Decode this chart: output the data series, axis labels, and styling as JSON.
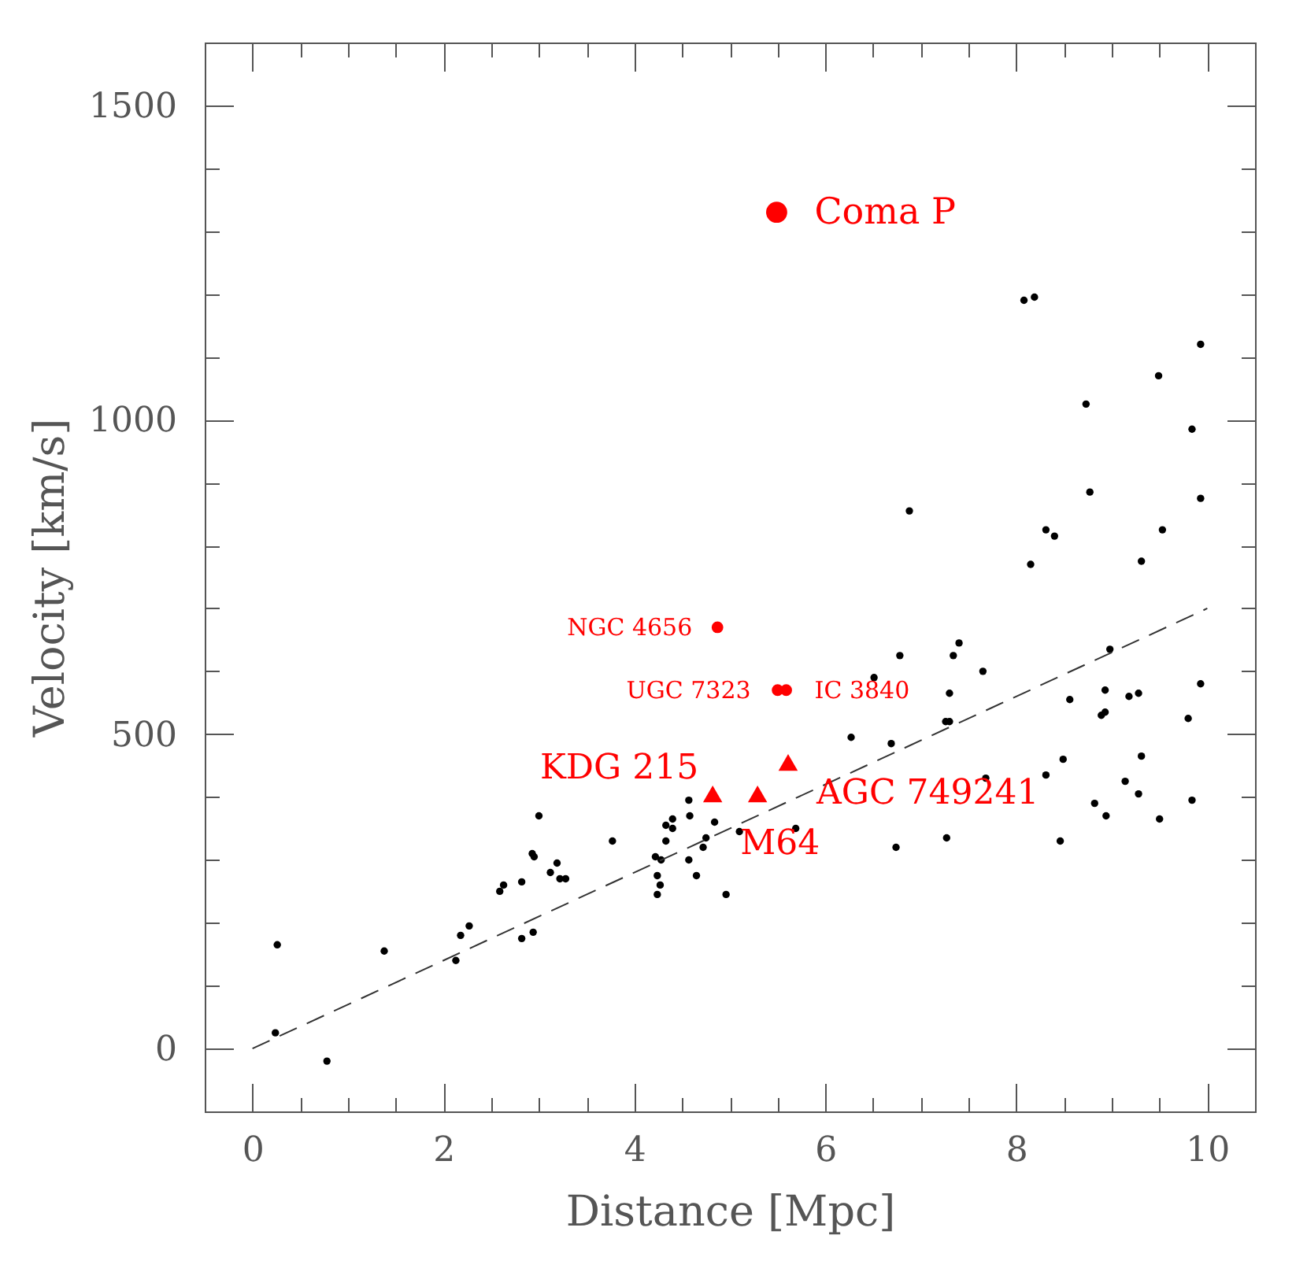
{
  "chart_data": {
    "type": "scatter",
    "xlabel": "Distance [Mpc]",
    "ylabel": "Velocity [km/s]",
    "xlim": [
      -0.5,
      10.5
    ],
    "ylim": [
      -100,
      1600
    ],
    "xticks": [
      0,
      {
        "value": 0.5,
        "label": null
      },
      {
        "value": 1,
        "label": null
      },
      {
        "value": 1.5,
        "label": null
      },
      2,
      {
        "value": 2.5,
        "label": null
      },
      {
        "value": 3,
        "label": null
      },
      {
        "value": 3.5,
        "label": null
      },
      4,
      {
        "value": 4.5,
        "label": null
      },
      {
        "value": 5,
        "label": null
      },
      {
        "value": 5.5,
        "label": null
      },
      6,
      {
        "value": 6.5,
        "label": null
      },
      {
        "value": 7,
        "label": null
      },
      {
        "value": 7.5,
        "label": null
      },
      8,
      {
        "value": 8.5,
        "label": null
      },
      {
        "value": 9,
        "label": null
      },
      {
        "value": 9.5,
        "label": null
      },
      10
    ],
    "yticks": [
      0,
      {
        "value": 100,
        "label": null
      },
      {
        "value": 200,
        "label": null
      },
      {
        "value": 300,
        "label": null
      },
      {
        "value": 400,
        "label": null
      },
      500,
      {
        "value": 600,
        "label": null
      },
      {
        "value": 700,
        "label": null
      },
      {
        "value": 800,
        "label": null
      },
      {
        "value": 900,
        "label": null
      },
      1000,
      {
        "value": 1100,
        "label": null
      },
      {
        "value": 1200,
        "label": null
      },
      {
        "value": 1300,
        "label": null
      },
      {
        "value": 1400,
        "label": null
      },
      1500
    ],
    "series": [
      {
        "color": "#000000",
        "marker": "circle",
        "x": [
          0.24,
          0.26,
          0.78,
          1.38,
          2.13,
          2.18,
          2.27,
          2.59,
          2.63,
          2.82,
          2.82,
          2.93,
          2.94,
          2.95,
          3.0,
          3.12,
          3.19,
          3.22,
          3.28,
          3.77,
          4.22,
          4.24,
          4.24,
          4.27,
          4.28,
          4.33,
          4.33,
          4.4,
          4.4,
          4.57,
          4.57,
          4.58,
          4.65,
          4.72,
          4.75,
          4.84,
          4.96,
          5.1,
          5.69,
          6.27,
          6.51,
          6.69,
          6.74,
          6.78,
          6.88,
          7.26,
          7.27,
          7.3,
          7.3,
          7.34,
          7.4,
          7.65,
          7.68,
          8.08,
          8.15,
          8.19,
          8.31,
          8.31,
          8.4,
          8.46,
          8.49,
          8.56,
          8.73,
          8.77,
          8.82,
          8.89,
          8.93,
          8.93,
          8.94,
          8.98,
          9.14,
          9.18,
          9.28,
          9.28,
          9.31,
          9.31,
          9.49,
          9.5,
          9.53,
          9.8,
          9.84,
          9.84,
          9.93,
          9.93,
          9.93
        ],
        "values": [
          25,
          165,
          -20,
          155,
          140,
          180,
          195,
          250,
          260,
          175,
          265,
          310,
          185,
          305,
          370,
          280,
          295,
          270,
          270,
          330,
          305,
          275,
          245,
          260,
          300,
          355,
          330,
          365,
          350,
          395,
          300,
          370,
          275,
          320,
          335,
          360,
          245,
          345,
          350,
          495,
          590,
          485,
          320,
          625,
          855,
          520,
          335,
          520,
          565,
          625,
          645,
          600,
          430,
          1190,
          770,
          1195,
          825,
          435,
          815,
          330,
          460,
          555,
          1025,
          885,
          390,
          530,
          535,
          570,
          370,
          635,
          425,
          560,
          565,
          405,
          465,
          775,
          1070,
          365,
          825,
          525,
          395,
          985,
          580,
          1120,
          875
        ]
      },
      {
        "type": "line",
        "color": "#333333",
        "marker": "none",
        "line_style": "dashed",
        "x": [
          0,
          10
        ],
        "values": [
          0,
          700
        ]
      },
      {
        "name": "Coma P",
        "color": "#ff0000",
        "marker": "circle",
        "x": [
          5.49
        ],
        "values": [
          1330
        ]
      },
      {
        "name": "NGC 4656",
        "color": "#ff0000",
        "marker": "circle",
        "x": [
          4.87
        ],
        "values": [
          670
        ]
      },
      {
        "name": "UGC 7323",
        "color": "#ff0000",
        "marker": "circle",
        "x": [
          5.5
        ],
        "values": [
          570
        ]
      },
      {
        "name": "IC 3840",
        "color": "#ff0000",
        "marker": "circle",
        "x": [
          5.59
        ],
        "values": [
          570
        ]
      },
      {
        "name": "KDG 215",
        "color": "#ff0000",
        "marker": "triangle",
        "x": [
          4.82
        ],
        "values": [
          405
        ]
      },
      {
        "name": "M64",
        "color": "#ff0000",
        "marker": "triangle",
        "x": [
          5.29
        ],
        "values": [
          405
        ]
      },
      {
        "name": "AGC 749241",
        "color": "#ff0000",
        "marker": "triangle",
        "x": [
          5.61
        ],
        "values": [
          455
        ]
      }
    ]
  }
}
